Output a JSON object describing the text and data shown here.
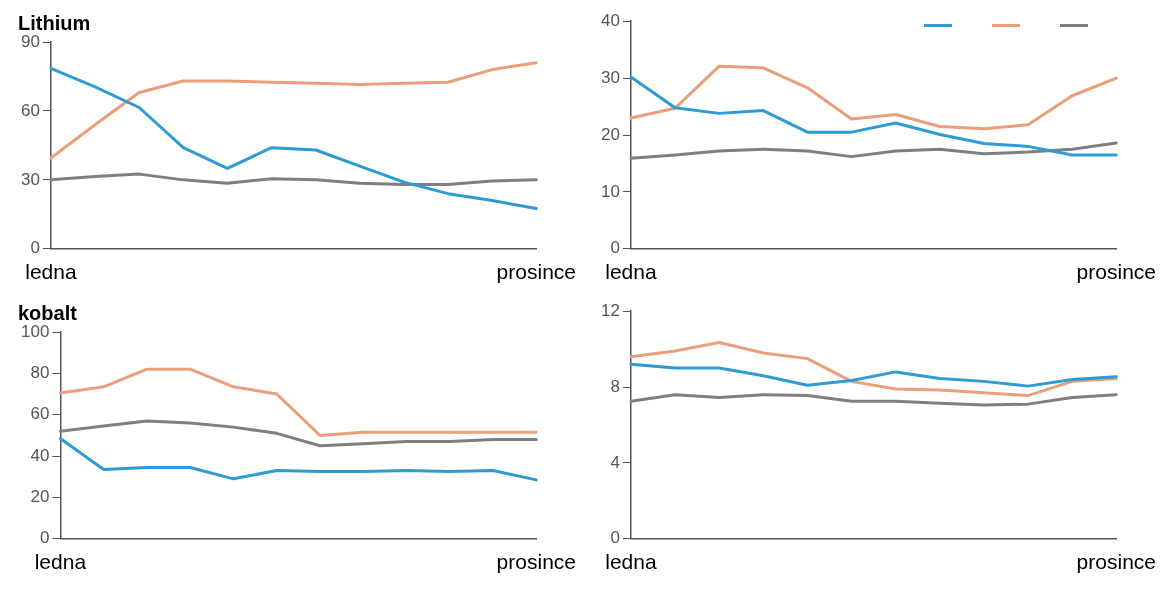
{
  "chart_data": [
    {
      "type": "line",
      "title": "Lithium",
      "categories": [
        "ledna",
        null,
        null,
        null,
        null,
        null,
        null,
        null,
        null,
        null,
        null,
        "prosince"
      ],
      "ylim": [
        0,
        90
      ],
      "yticks": [
        0,
        30,
        60,
        90
      ],
      "grid": false,
      "legend": false,
      "marker": "none",
      "line_style": "solid",
      "series": [
        {
          "color": "#2e9bd3",
          "values": [
            78.5,
            70.5,
            61.5,
            44,
            35,
            44,
            43,
            36,
            29,
            24,
            21,
            17.5
          ]
        },
        {
          "color": "#e9a07a",
          "values": [
            39.5,
            54,
            68,
            73,
            73,
            72.5,
            72,
            71.5,
            72,
            72.5,
            78,
            81
          ]
        },
        {
          "color": "#7f7f7f",
          "values": [
            30,
            31.5,
            32.5,
            30,
            28.5,
            30.5,
            30,
            28.5,
            28,
            28,
            29.5,
            30
          ]
        }
      ]
    },
    {
      "type": "line",
      "categories": [
        "ledna",
        null,
        null,
        null,
        null,
        null,
        null,
        null,
        null,
        null,
        null,
        "prosince"
      ],
      "ylim": [
        0,
        40
      ],
      "yticks": [
        0,
        10,
        20,
        30,
        40
      ],
      "grid": false,
      "legend": false,
      "marker": "none",
      "line_style": "solid",
      "series": [
        {
          "color": "#2e9bd3",
          "values": [
            30.2,
            24.8,
            23.8,
            24.3,
            20.5,
            20.5,
            22.1,
            20.1,
            18.5,
            18,
            16.5,
            16.5
          ]
        },
        {
          "color": "#e9a07a",
          "values": [
            23,
            24.7,
            32.1,
            31.8,
            28.3,
            22.8,
            23.6,
            21.5,
            21.1,
            21.8,
            26.9,
            30
          ]
        },
        {
          "color": "#7f7f7f",
          "values": [
            15.9,
            16.5,
            17.2,
            17.5,
            17.2,
            16.2,
            17.2,
            17.5,
            16.7,
            17,
            17.5,
            18.6
          ]
        }
      ]
    },
    {
      "type": "line",
      "title": "kobalt",
      "categories": [
        "ledna",
        null,
        null,
        null,
        null,
        null,
        null,
        null,
        null,
        null,
        null,
        "prosince"
      ],
      "ylim": [
        0,
        100
      ],
      "yticks": [
        0,
        20,
        40,
        60,
        80,
        100
      ],
      "grid": false,
      "legend": false,
      "marker": "none",
      "line_style": "solid",
      "series": [
        {
          "color": "#2e9bd3",
          "values": [
            48.5,
            33.5,
            34.5,
            34.5,
            29,
            33,
            32.5,
            32.5,
            33,
            32.5,
            33,
            28.5
          ]
        },
        {
          "color": "#e9a07a",
          "values": [
            70.5,
            73.5,
            82,
            82,
            73.5,
            70,
            50,
            51.5,
            51.5,
            51.5,
            51.5,
            51.5
          ]
        },
        {
          "color": "#7f7f7f",
          "values": [
            52,
            54.5,
            57,
            56,
            54,
            51,
            45,
            46,
            47,
            47,
            48,
            48
          ]
        }
      ]
    },
    {
      "type": "line",
      "categories": [
        "ledna",
        null,
        null,
        null,
        null,
        null,
        null,
        null,
        null,
        null,
        null,
        "prosince"
      ],
      "ylim": [
        0,
        12
      ],
      "yticks": [
        0,
        4,
        8,
        12
      ],
      "grid": false,
      "legend": false,
      "marker": "none",
      "line_style": "solid",
      "series": [
        {
          "color": "#2e9bd3",
          "values": [
            9.2,
            9.0,
            9.0,
            8.6,
            8.1,
            8.35,
            8.8,
            8.45,
            8.3,
            8.05,
            8.4,
            8.55
          ]
        },
        {
          "color": "#e9a07a",
          "values": [
            9.6,
            9.9,
            10.35,
            9.8,
            9.5,
            8.3,
            7.9,
            7.85,
            7.7,
            7.55,
            8.3,
            8.45
          ]
        },
        {
          "color": "#7f7f7f",
          "values": [
            7.25,
            7.6,
            7.45,
            7.6,
            7.55,
            7.25,
            7.25,
            7.15,
            7.05,
            7.1,
            7.45,
            7.6
          ]
        }
      ]
    }
  ]
}
